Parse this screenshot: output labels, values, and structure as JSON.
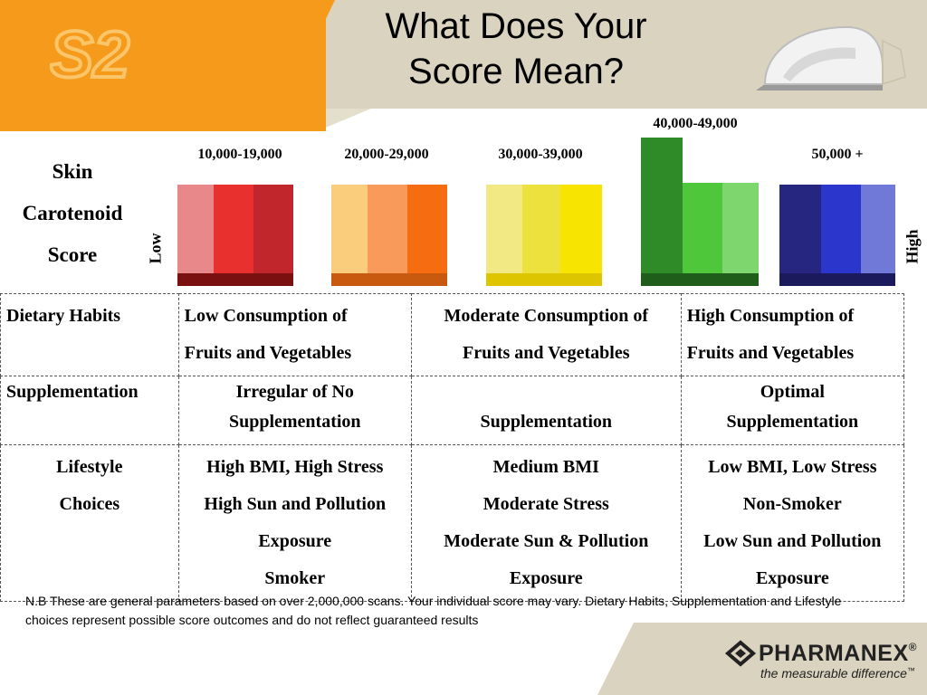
{
  "slide": {
    "title_line1": "What Does Your",
    "title_line2": "Score Mean?"
  },
  "score_label": [
    "Skin",
    "Carotenoid",
    "Score"
  ],
  "scale": {
    "low": "Low",
    "high": "High"
  },
  "ranges": [
    {
      "label": "10,000-19,000",
      "colors": [
        "#e8888a",
        "#e8302e",
        "#c0262b"
      ],
      "base": "#7a1010"
    },
    {
      "label": "20,000-29,000",
      "colors": [
        "#f9cd7b",
        "#f79a5a",
        "#f66c10"
      ],
      "base": "#c85a10"
    },
    {
      "label": "30,000-39,000",
      "colors": [
        "#f3e984",
        "#ede13e",
        "#f7e400"
      ],
      "base": "#ddc600"
    },
    {
      "label": "40,000-49,000",
      "colors": [
        "#2e8b27",
        "#4fc73a",
        "#7dd66e"
      ],
      "base": "#1f5d1a"
    },
    {
      "label": "50,000 +",
      "colors": [
        "#262680",
        "#2b36cc",
        "#7078d8"
      ],
      "base": "#1a1a5c"
    }
  ],
  "table": {
    "rows": [
      {
        "header": "Dietary Habits",
        "low": [
          "Low Consumption of",
          "Fruits and Vegetables"
        ],
        "moderate": [
          "Moderate Consumption of",
          "Fruits and Vegetables"
        ],
        "high": [
          "High Consumption of",
          "Fruits and Vegetables"
        ]
      },
      {
        "header": "Supplementation",
        "low": [
          "Irregular of No",
          "Supplementation"
        ],
        "moderate": [
          "",
          "Supplementation"
        ],
        "high": [
          "Optimal",
          "Supplementation"
        ]
      },
      {
        "header_lines": [
          "Lifestyle",
          "Choices"
        ],
        "low": [
          "High BMI, High Stress",
          "High Sun and Pollution",
          "Exposure",
          "Smoker"
        ],
        "moderate": [
          "Medium BMI",
          "Moderate Stress",
          "Moderate Sun & Pollution",
          "Exposure"
        ],
        "high": [
          "Low BMI, Low Stress",
          "Non-Smoker",
          "Low Sun and Pollution",
          "Exposure"
        ]
      }
    ]
  },
  "note": "N.B These are general parameters based on over 2,000,000 scans. Your individual score may vary. Dietary Habits, Supplementation and Lifestyle choices represent possible score outcomes and do not reflect guaranteed results",
  "brand": {
    "name": "PHARMANEX",
    "reg": "®",
    "tagline": "the measurable difference",
    "tm": "™"
  },
  "logo": {
    "text": "S2"
  },
  "colors": {
    "header_orange": "#f59a1b",
    "header_beige": "#d9d3bf"
  }
}
